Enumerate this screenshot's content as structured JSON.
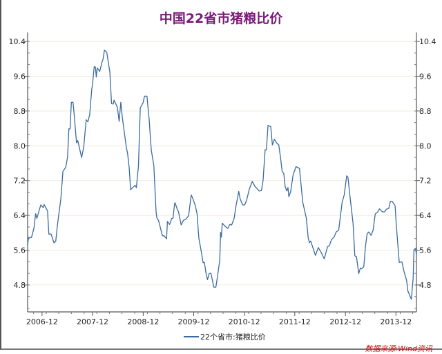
{
  "chart_data": {
    "type": "line",
    "title": "中国22省市猪粮比价",
    "xlabel": "",
    "ylabel": "",
    "xlim": [
      "2006-08-19",
      "2014-04-28"
    ],
    "ylim": [
      4.18,
      10.48
    ],
    "y_ticks": [
      "10.4",
      "9.6",
      "8.8",
      "8.0",
      "7.2",
      "6.4",
      "5.6",
      "4.8"
    ],
    "x_ticks": [
      "2006-12",
      "2007-12",
      "2008-12",
      "2009-12",
      "2010-12",
      "2011-12",
      "2012-12",
      "2013-12"
    ],
    "grid": "horizontal",
    "legend_position": "bottom",
    "right_axis_mirrored": true,
    "series": [
      {
        "name": "22个省市:猪粮比价",
        "color": "#3a6aa0",
        "points": [
          [
            "2006-08-19",
            5.72
          ],
          [
            "2006-08-25",
            5.89
          ],
          [
            "2006-09-16",
            5.89
          ],
          [
            "2006-10-04",
            6.11
          ],
          [
            "2006-10-16",
            6.44
          ],
          [
            "2006-10-25",
            6.33
          ],
          [
            "2006-11-22",
            6.64
          ],
          [
            "2006-12-10",
            6.58
          ],
          [
            "2006-12-16",
            6.65
          ],
          [
            "2007-01-10",
            6.5
          ],
          [
            "2007-01-19",
            5.97
          ],
          [
            "2007-02-04",
            5.97
          ],
          [
            "2007-02-25",
            5.77
          ],
          [
            "2007-03-10",
            5.8
          ],
          [
            "2007-03-22",
            6.17
          ],
          [
            "2007-04-16",
            6.78
          ],
          [
            "2007-05-01",
            7.41
          ],
          [
            "2007-05-22",
            7.51
          ],
          [
            "2007-06-04",
            7.75
          ],
          [
            "2007-06-13",
            8.39
          ],
          [
            "2007-06-22",
            8.39
          ],
          [
            "2007-07-01",
            9.0
          ],
          [
            "2007-07-13",
            9.0
          ],
          [
            "2007-07-19",
            8.81
          ],
          [
            "2007-08-07",
            8.07
          ],
          [
            "2007-08-16",
            8.12
          ],
          [
            "2007-09-13",
            7.73
          ],
          [
            "2007-09-28",
            7.97
          ],
          [
            "2007-10-16",
            8.6
          ],
          [
            "2007-10-28",
            8.55
          ],
          [
            "2007-11-10",
            8.71
          ],
          [
            "2007-11-25",
            9.29
          ],
          [
            "2007-12-01",
            9.42
          ],
          [
            "2007-12-13",
            9.82
          ],
          [
            "2007-12-22",
            9.81
          ],
          [
            "2007-12-28",
            9.58
          ],
          [
            "2008-01-04",
            9.79
          ],
          [
            "2008-01-22",
            9.71
          ],
          [
            "2008-02-07",
            9.92
          ],
          [
            "2008-02-16",
            10.0
          ],
          [
            "2008-02-25",
            10.2
          ],
          [
            "2008-03-13",
            10.15
          ],
          [
            "2008-04-04",
            9.69
          ],
          [
            "2008-04-16",
            8.97
          ],
          [
            "2008-04-28",
            8.96
          ],
          [
            "2008-05-04",
            9.05
          ],
          [
            "2008-05-16",
            8.97
          ],
          [
            "2008-05-28",
            8.89
          ],
          [
            "2008-06-10",
            8.56
          ],
          [
            "2008-06-22",
            9.0
          ],
          [
            "2008-07-04",
            8.63
          ],
          [
            "2008-08-01",
            7.97
          ],
          [
            "2008-08-10",
            7.83
          ],
          [
            "2008-08-22",
            7.49
          ],
          [
            "2008-09-01",
            6.99
          ],
          [
            "2008-09-16",
            7.04
          ],
          [
            "2008-10-04",
            7.09
          ],
          [
            "2008-10-13",
            7.04
          ],
          [
            "2008-10-28",
            7.54
          ],
          [
            "2008-11-10",
            8.87
          ],
          [
            "2008-12-01",
            9.0
          ],
          [
            "2008-12-10",
            9.14
          ],
          [
            "2008-12-28",
            9.14
          ],
          [
            "2009-01-13",
            8.6
          ],
          [
            "2009-01-28",
            7.91
          ],
          [
            "2009-02-16",
            7.54
          ],
          [
            "2009-03-04",
            6.48
          ],
          [
            "2009-03-10",
            6.34
          ],
          [
            "2009-03-22",
            6.28
          ],
          [
            "2009-04-19",
            5.93
          ],
          [
            "2009-05-01",
            5.93
          ],
          [
            "2009-05-19",
            5.86
          ],
          [
            "2009-05-25",
            6.26
          ],
          [
            "2009-06-10",
            6.19
          ],
          [
            "2009-06-25",
            6.33
          ],
          [
            "2009-07-04",
            6.33
          ],
          [
            "2009-07-16",
            6.67
          ],
          [
            "2009-07-19",
            6.69
          ],
          [
            "2009-08-04",
            6.54
          ],
          [
            "2009-08-13",
            6.48
          ],
          [
            "2009-09-01",
            6.18
          ],
          [
            "2009-09-16",
            6.28
          ],
          [
            "2009-10-07",
            6.32
          ],
          [
            "2009-10-25",
            6.39
          ],
          [
            "2009-11-13",
            6.87
          ],
          [
            "2009-11-22",
            6.81
          ],
          [
            "2009-12-13",
            6.62
          ],
          [
            "2009-12-25",
            6.44
          ],
          [
            "2010-01-07",
            5.88
          ],
          [
            "2010-01-28",
            5.51
          ],
          [
            "2010-02-07",
            5.31
          ],
          [
            "2010-02-16",
            5.32
          ],
          [
            "2010-02-28",
            5.06
          ],
          [
            "2010-03-10",
            4.92
          ],
          [
            "2010-03-22",
            5.06
          ],
          [
            "2010-04-04",
            5.07
          ],
          [
            "2010-04-25",
            4.75
          ],
          [
            "2010-05-10",
            4.75
          ],
          [
            "2010-05-22",
            5.0
          ],
          [
            "2010-06-07",
            5.37
          ],
          [
            "2010-06-13",
            6.01
          ],
          [
            "2010-06-19",
            5.9
          ],
          [
            "2010-06-25",
            6.22
          ],
          [
            "2010-07-19",
            6.14
          ],
          [
            "2010-08-04",
            6.1
          ],
          [
            "2010-08-19",
            6.19
          ],
          [
            "2010-09-01",
            6.18
          ],
          [
            "2010-09-19",
            6.33
          ],
          [
            "2010-10-04",
            6.64
          ],
          [
            "2010-10-22",
            6.95
          ],
          [
            "2010-11-01",
            6.78
          ],
          [
            "2010-11-19",
            6.64
          ],
          [
            "2010-12-04",
            6.64
          ],
          [
            "2010-12-19",
            6.76
          ],
          [
            "2011-01-07",
            7.01
          ],
          [
            "2011-01-28",
            7.18
          ],
          [
            "2011-02-16",
            7.07
          ],
          [
            "2011-03-19",
            6.96
          ],
          [
            "2011-04-04",
            6.97
          ],
          [
            "2011-04-16",
            7.2
          ],
          [
            "2011-05-01",
            7.91
          ],
          [
            "2011-05-10",
            7.91
          ],
          [
            "2011-05-22",
            8.47
          ],
          [
            "2011-06-10",
            8.44
          ],
          [
            "2011-06-22",
            8.02
          ],
          [
            "2011-07-07",
            8.15
          ],
          [
            "2011-07-22",
            8.07
          ],
          [
            "2011-08-07",
            8.02
          ],
          [
            "2011-08-19",
            7.75
          ],
          [
            "2011-09-01",
            7.41
          ],
          [
            "2011-09-13",
            7.36
          ],
          [
            "2011-09-22",
            7.07
          ],
          [
            "2011-10-04",
            6.96
          ],
          [
            "2011-10-13",
            7.04
          ],
          [
            "2011-10-19",
            6.83
          ],
          [
            "2011-11-01",
            6.94
          ],
          [
            "2011-11-19",
            7.33
          ],
          [
            "2011-12-10",
            7.52
          ],
          [
            "2012-01-04",
            7.48
          ],
          [
            "2012-01-28",
            6.7
          ],
          [
            "2012-02-22",
            6.34
          ],
          [
            "2012-03-07",
            5.88
          ],
          [
            "2012-03-16",
            5.77
          ],
          [
            "2012-03-25",
            5.81
          ],
          [
            "2012-04-28",
            5.48
          ],
          [
            "2012-05-19",
            5.66
          ],
          [
            "2012-06-10",
            5.54
          ],
          [
            "2012-07-01",
            5.4
          ],
          [
            "2012-07-25",
            5.68
          ],
          [
            "2012-08-07",
            5.7
          ],
          [
            "2012-08-22",
            5.84
          ],
          [
            "2012-09-10",
            5.9
          ],
          [
            "2012-09-25",
            6.02
          ],
          [
            "2012-10-13",
            6.06
          ],
          [
            "2012-11-07",
            6.7
          ],
          [
            "2012-11-22",
            6.87
          ],
          [
            "2012-12-10",
            7.31
          ],
          [
            "2012-12-19",
            7.28
          ],
          [
            "2013-01-04",
            6.8
          ],
          [
            "2013-01-25",
            6.22
          ],
          [
            "2013-02-07",
            5.47
          ],
          [
            "2013-02-19",
            5.45
          ],
          [
            "2013-03-07",
            5.06
          ],
          [
            "2013-03-19",
            5.19
          ],
          [
            "2013-03-28",
            5.17
          ],
          [
            "2013-04-13",
            5.22
          ],
          [
            "2013-04-25",
            5.69
          ],
          [
            "2013-05-07",
            5.98
          ],
          [
            "2013-05-19",
            6.02
          ],
          [
            "2013-06-04",
            5.94
          ],
          [
            "2013-06-19",
            6.06
          ],
          [
            "2013-07-04",
            6.43
          ],
          [
            "2013-07-22",
            6.48
          ],
          [
            "2013-08-04",
            6.55
          ],
          [
            "2013-08-25",
            6.48
          ],
          [
            "2013-09-10",
            6.48
          ],
          [
            "2013-09-22",
            6.54
          ],
          [
            "2013-10-10",
            6.56
          ],
          [
            "2013-10-22",
            6.72
          ],
          [
            "2013-11-04",
            6.72
          ],
          [
            "2013-11-25",
            6.62
          ],
          [
            "2013-12-04",
            6.16
          ],
          [
            "2013-12-25",
            5.32
          ],
          [
            "2014-01-13",
            5.33
          ],
          [
            "2014-01-28",
            5.11
          ],
          [
            "2014-02-16",
            4.9
          ],
          [
            "2014-02-25",
            4.66
          ],
          [
            "2014-03-22",
            4.47
          ],
          [
            "2014-04-04",
            4.95
          ],
          [
            "2014-04-10",
            5.61
          ],
          [
            "2014-04-22",
            5.64
          ],
          [
            "2014-04-28",
            5.48
          ]
        ]
      }
    ]
  },
  "legend": {
    "label": "22个省市:猪粮比价"
  },
  "source": "数据来源:Wind资讯"
}
